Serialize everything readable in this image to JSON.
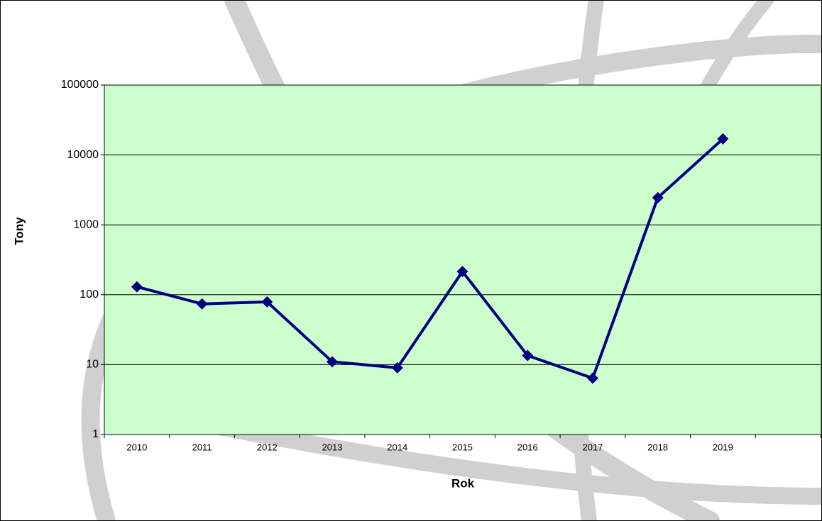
{
  "chart_data": {
    "type": "line",
    "x_label": "Rok",
    "y_label": "Tony",
    "categories": [
      "2010",
      "2011",
      "2012",
      "2013",
      "2014",
      "2015",
      "2016",
      "2017",
      "2018",
      "2019",
      null
    ],
    "series": [
      {
        "name": "Tony",
        "color": "#000080",
        "values": [
          130,
          74,
          79,
          11,
          9,
          215,
          13.5,
          6.4,
          2450,
          17000,
          null
        ]
      }
    ],
    "ylim": [
      1,
      100000
    ],
    "yticks": [
      1,
      10,
      100,
      1000,
      10000,
      100000
    ],
    "log_y": true,
    "grid": true,
    "plot_background": "#ccffcc"
  }
}
